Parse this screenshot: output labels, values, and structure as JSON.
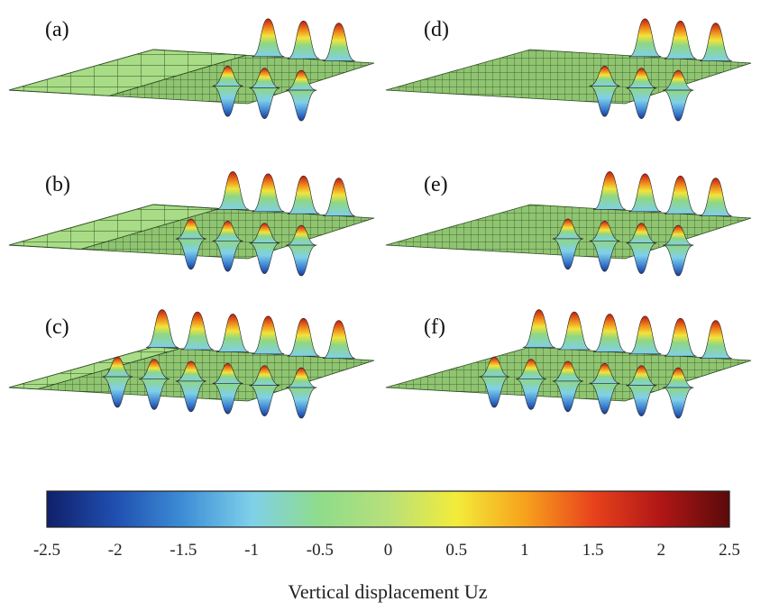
{
  "figure": {
    "panels": [
      {
        "id": "a",
        "label": "(a)"
      },
      {
        "id": "b",
        "label": "(b)"
      },
      {
        "id": "c",
        "label": "(c)"
      },
      {
        "id": "d",
        "label": "(d)"
      },
      {
        "id": "e",
        "label": "(e)"
      },
      {
        "id": "f",
        "label": "(f)"
      }
    ],
    "colorbar": {
      "ticks": [
        "-2.5",
        "-2",
        "-1.5",
        "-1",
        "-0.5",
        "0",
        "0.5",
        "1",
        "1.5",
        "2",
        "2.5"
      ],
      "caption": "Vertical displacement Uz",
      "colors": [
        "#10206a",
        "#1f4fb0",
        "#3d8ed6",
        "#7fd0ea",
        "#8fdc8a",
        "#b8e07a",
        "#f3ec3a",
        "#f7a21c",
        "#e8431c",
        "#b01616",
        "#5a0a0a"
      ]
    },
    "plate_color": "#9ad27a"
  }
}
